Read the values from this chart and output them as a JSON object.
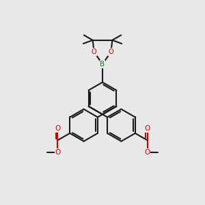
{
  "bg_color": "#e8e8e8",
  "bond_color": "#1a1a1a",
  "O_color": "#cc0000",
  "B_color": "#008800",
  "lw": 1.5,
  "dbo": 0.012,
  "fs": 7.5,
  "r": 0.115,
  "xlim": [
    -0.72,
    0.72
  ],
  "ylim": [
    -0.78,
    0.62
  ]
}
